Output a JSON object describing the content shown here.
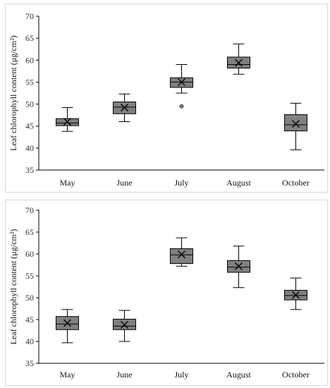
{
  "chart_data": [
    {
      "type": "box",
      "ylabel": "Leaf chlorophyll content (μg/cm²)",
      "ylim": [
        35,
        70
      ],
      "yticks": [
        "35",
        "40",
        "45",
        "50",
        "55",
        "60",
        "65",
        "70"
      ],
      "categories": [
        "May",
        "June",
        "July",
        "August",
        "October"
      ],
      "boxes": [
        {
          "min": 43.8,
          "q1": 45.1,
          "median": 45.7,
          "q3": 46.7,
          "max": 49.2,
          "mean": 46.0,
          "outliers": []
        },
        {
          "min": 46.0,
          "q1": 47.8,
          "median": 49.3,
          "q3": 50.5,
          "max": 52.3,
          "mean": 49.2,
          "outliers": []
        },
        {
          "min": 52.5,
          "q1": 53.8,
          "median": 55.0,
          "q3": 56.0,
          "max": 59.0,
          "mean": 55.0,
          "outliers": [
            49.5
          ]
        },
        {
          "min": 56.8,
          "q1": 58.2,
          "median": 59.0,
          "q3": 60.7,
          "max": 63.7,
          "mean": 59.4,
          "outliers": []
        },
        {
          "min": 39.6,
          "q1": 43.9,
          "median": 45.3,
          "q3": 47.6,
          "max": 50.2,
          "mean": 45.5,
          "outliers": []
        }
      ]
    },
    {
      "type": "box",
      "ylabel": "Leaf chlorophyll content (μg/cm²)",
      "ylim": [
        35,
        70
      ],
      "yticks": [
        "35",
        "40",
        "45",
        "50",
        "55",
        "60",
        "65",
        "70"
      ],
      "categories": [
        "May",
        "June",
        "July",
        "August",
        "October"
      ],
      "boxes": [
        {
          "min": 39.7,
          "q1": 42.7,
          "median": 44.0,
          "q3": 45.7,
          "max": 47.3,
          "mean": 44.2,
          "outliers": []
        },
        {
          "min": 40.0,
          "q1": 42.7,
          "median": 43.5,
          "q3": 45.1,
          "max": 47.1,
          "mean": 43.8,
          "outliers": []
        },
        {
          "min": 57.2,
          "q1": 57.8,
          "median": 59.8,
          "q3": 61.2,
          "max": 63.7,
          "mean": 59.9,
          "outliers": []
        },
        {
          "min": 52.3,
          "q1": 55.8,
          "median": 57.0,
          "q3": 58.5,
          "max": 61.8,
          "mean": 57.2,
          "outliers": []
        },
        {
          "min": 47.3,
          "q1": 49.5,
          "median": 50.5,
          "q3": 51.7,
          "max": 54.5,
          "mean": 50.6,
          "outliers": []
        }
      ]
    }
  ],
  "style": {
    "box_fill": "#808080",
    "line_color": "#000000",
    "axis_color": "#000000"
  }
}
